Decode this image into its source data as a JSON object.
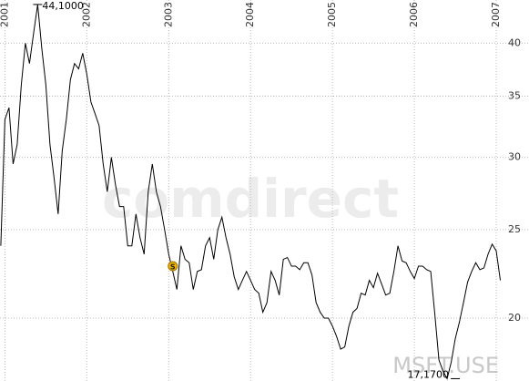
{
  "chart_data": {
    "type": "line",
    "log_scale": true,
    "grid": true,
    "color": "#000000",
    "watermark": "comdirect",
    "symbol": "MSFT.USE",
    "annotations": [
      {
        "text": "44,1000",
        "x": 2001.4,
        "y": 44.1
      },
      {
        "text": "17,1700",
        "x": 2006.5,
        "y": 17.17
      },
      {
        "text": "S",
        "x": 2003.05,
        "y": 22.8
      }
    ],
    "xlim": [
      2000.94,
      2007.4
    ],
    "xticks": [
      2001,
      2002,
      2003,
      2004,
      2005,
      2006,
      2007
    ],
    "ylim": [
      17.07,
      44.6
    ],
    "yticks": [
      20,
      25,
      30,
      35,
      40
    ],
    "x": [
      2000.95,
      2001,
      2001.05,
      2001.1,
      2001.15,
      2001.2,
      2001.25,
      2001.3,
      2001.35,
      2001.4,
      2001.45,
      2001.5,
      2001.55,
      2001.6,
      2001.65,
      2001.7,
      2001.75,
      2001.8,
      2001.85,
      2001.9,
      2001.95,
      2002,
      2002.05,
      2002.1,
      2002.15,
      2002.2,
      2002.25,
      2002.3,
      2002.35,
      2002.4,
      2002.45,
      2002.5,
      2002.55,
      2002.6,
      2002.65,
      2002.7,
      2002.75,
      2002.8,
      2002.85,
      2002.9,
      2002.95,
      2003,
      2003.05,
      2003.1,
      2003.15,
      2003.2,
      2003.25,
      2003.3,
      2003.35,
      2003.4,
      2003.45,
      2003.5,
      2003.55,
      2003.6,
      2003.65,
      2003.7,
      2003.75,
      2003.8,
      2003.85,
      2003.9,
      2003.95,
      2004,
      2004.05,
      2004.1,
      2004.15,
      2004.2,
      2004.25,
      2004.3,
      2004.35,
      2004.4,
      2004.45,
      2004.5,
      2004.55,
      2004.6,
      2004.65,
      2004.7,
      2004.75,
      2004.8,
      2004.85,
      2004.9,
      2004.95,
      2005,
      2005.05,
      2005.1,
      2005.15,
      2005.2,
      2005.25,
      2005.3,
      2005.35,
      2005.4,
      2005.45,
      2005.5,
      2005.55,
      2005.6,
      2005.65,
      2005.7,
      2005.75,
      2005.8,
      2005.85,
      2005.9,
      2005.95,
      2006,
      2006.05,
      2006.1,
      2006.15,
      2006.2,
      2006.25,
      2006.3,
      2006.35,
      2006.4,
      2006.45,
      2006.5,
      2006.55,
      2006.6,
      2006.65,
      2006.7,
      2006.75,
      2006.8,
      2006.85,
      2006.9,
      2006.95,
      2007,
      2007.05
    ],
    "values": [
      24,
      33,
      34,
      29.5,
      31,
      36,
      40,
      38,
      41,
      44.1,
      39.5,
      36,
      31,
      28.5,
      26,
      30.5,
      33,
      36.5,
      38,
      37.5,
      39,
      37,
      34.5,
      33.5,
      32.5,
      29.5,
      27.5,
      30,
      28,
      26.5,
      26.5,
      24,
      24,
      26,
      24.5,
      23.5,
      27.5,
      29.5,
      27.5,
      26.5,
      25,
      23.5,
      22.5,
      21.5,
      24,
      23.2,
      23,
      21.5,
      22.5,
      22.6,
      24,
      24.5,
      23.2,
      25,
      25.8,
      24.5,
      23.5,
      22.2,
      21.5,
      22,
      22.5,
      22,
      21.5,
      21.3,
      20.3,
      20.8,
      22.5,
      22,
      21.2,
      23.2,
      23.3,
      22.8,
      22.8,
      22.6,
      23,
      23,
      22.3,
      20.8,
      20.3,
      20,
      20,
      19.6,
      19.1,
      18.5,
      18.6,
      19.6,
      20.3,
      20.5,
      21.3,
      21.2,
      22,
      21.6,
      22.4,
      21.8,
      21.2,
      21.3,
      22.5,
      24,
      23.1,
      23,
      22.5,
      22.1,
      22.8,
      22.8,
      22.6,
      22.5,
      20.2,
      18,
      17.5,
      17.17,
      17.9,
      19,
      19.8,
      20.8,
      21.9,
      22.5,
      23,
      22.6,
      22.7,
      23.5,
      24.1,
      23.7,
      22
    ]
  }
}
